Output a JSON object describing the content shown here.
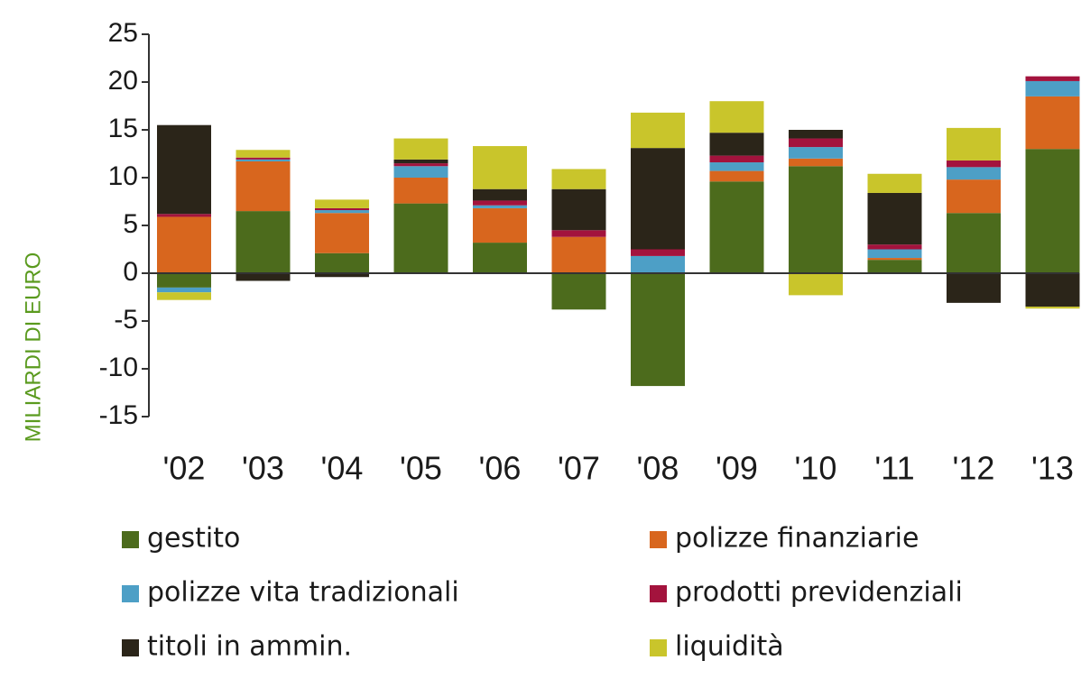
{
  "chart_data": {
    "type": "bar",
    "stacked": true,
    "y_label": "MILIARDI DI EURO",
    "categories": [
      "'02",
      "'03",
      "'04",
      "'05",
      "'06",
      "'07",
      "'08",
      "'09",
      "'10",
      "'11",
      "'12",
      "'13"
    ],
    "series": [
      {
        "name": "gestito",
        "color": "#4c6b1c",
        "values": [
          -1.5,
          6.5,
          2.1,
          7.3,
          3.2,
          -3.8,
          -11.8,
          9.6,
          11.2,
          1.4,
          6.3,
          13.0
        ]
      },
      {
        "name": "polizze finanziarie",
        "color": "#d8661e",
        "values": [
          5.9,
          5.2,
          4.2,
          2.7,
          3.6,
          3.8,
          0,
          1.1,
          0.8,
          0.2,
          3.5,
          5.5
        ]
      },
      {
        "name": "polizze vita tradizionali",
        "color": "#4d9fc6",
        "values": [
          -0.5,
          0.2,
          0.3,
          1.2,
          0.3,
          0,
          1.8,
          0.9,
          1.2,
          0.9,
          1.3,
          1.6
        ]
      },
      {
        "name": "prodotti previdenziali",
        "color": "#a3133d",
        "values": [
          0.3,
          0.2,
          0.2,
          0.3,
          0.5,
          0.7,
          0.7,
          0.7,
          0.9,
          0.5,
          0.7,
          0.5
        ]
      },
      {
        "name": "titoli in ammin.",
        "color": "#2b2519",
        "values": [
          9.3,
          -0.8,
          -0.4,
          0.4,
          1.2,
          4.3,
          10.6,
          2.4,
          0.9,
          5.4,
          -3.1,
          -3.5
        ]
      },
      {
        "name": "liquidità",
        "color": "#c9c52b",
        "values": [
          -0.8,
          0.8,
          0.9,
          2.2,
          4.5,
          2.1,
          3.7,
          3.3,
          -2.3,
          2.0,
          3.4,
          -0.2
        ]
      }
    ],
    "ylim": [
      -15,
      25
    ],
    "yticks": [
      -15,
      -10,
      -5,
      0,
      5,
      10,
      15,
      20,
      25
    ]
  }
}
